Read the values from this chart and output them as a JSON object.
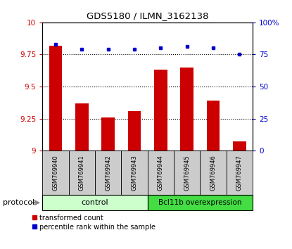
{
  "title": "GDS5180 / ILMN_3162138",
  "samples": [
    "GSM769940",
    "GSM769941",
    "GSM769942",
    "GSM769943",
    "GSM769944",
    "GSM769945",
    "GSM769946",
    "GSM769947"
  ],
  "red_values": [
    9.82,
    9.37,
    9.26,
    9.31,
    9.63,
    9.65,
    9.39,
    9.07
  ],
  "blue_values": [
    83,
    79,
    79,
    79,
    80,
    81,
    80,
    75
  ],
  "ylim_left": [
    9.0,
    10.0
  ],
  "ylim_right": [
    0,
    100
  ],
  "yticks_left": [
    9.0,
    9.25,
    9.5,
    9.75,
    10.0
  ],
  "yticks_right": [
    0,
    25,
    50,
    75,
    100
  ],
  "ytick_labels_left": [
    "9",
    "9.25",
    "9.5",
    "9.75",
    "10"
  ],
  "ytick_labels_right": [
    "0",
    "25",
    "50",
    "75",
    "100%"
  ],
  "control_label": "control",
  "over_label": "Bcl11b overexpression",
  "protocol_label": "protocol",
  "legend_red": "transformed count",
  "legend_blue": "percentile rank within the sample",
  "bar_color": "#cc0000",
  "dot_color": "#0000cc",
  "bar_width": 0.5,
  "bg_color": "#cccccc",
  "control_color": "#ccffcc",
  "over_color": "#44dd44",
  "plot_bg": "white"
}
